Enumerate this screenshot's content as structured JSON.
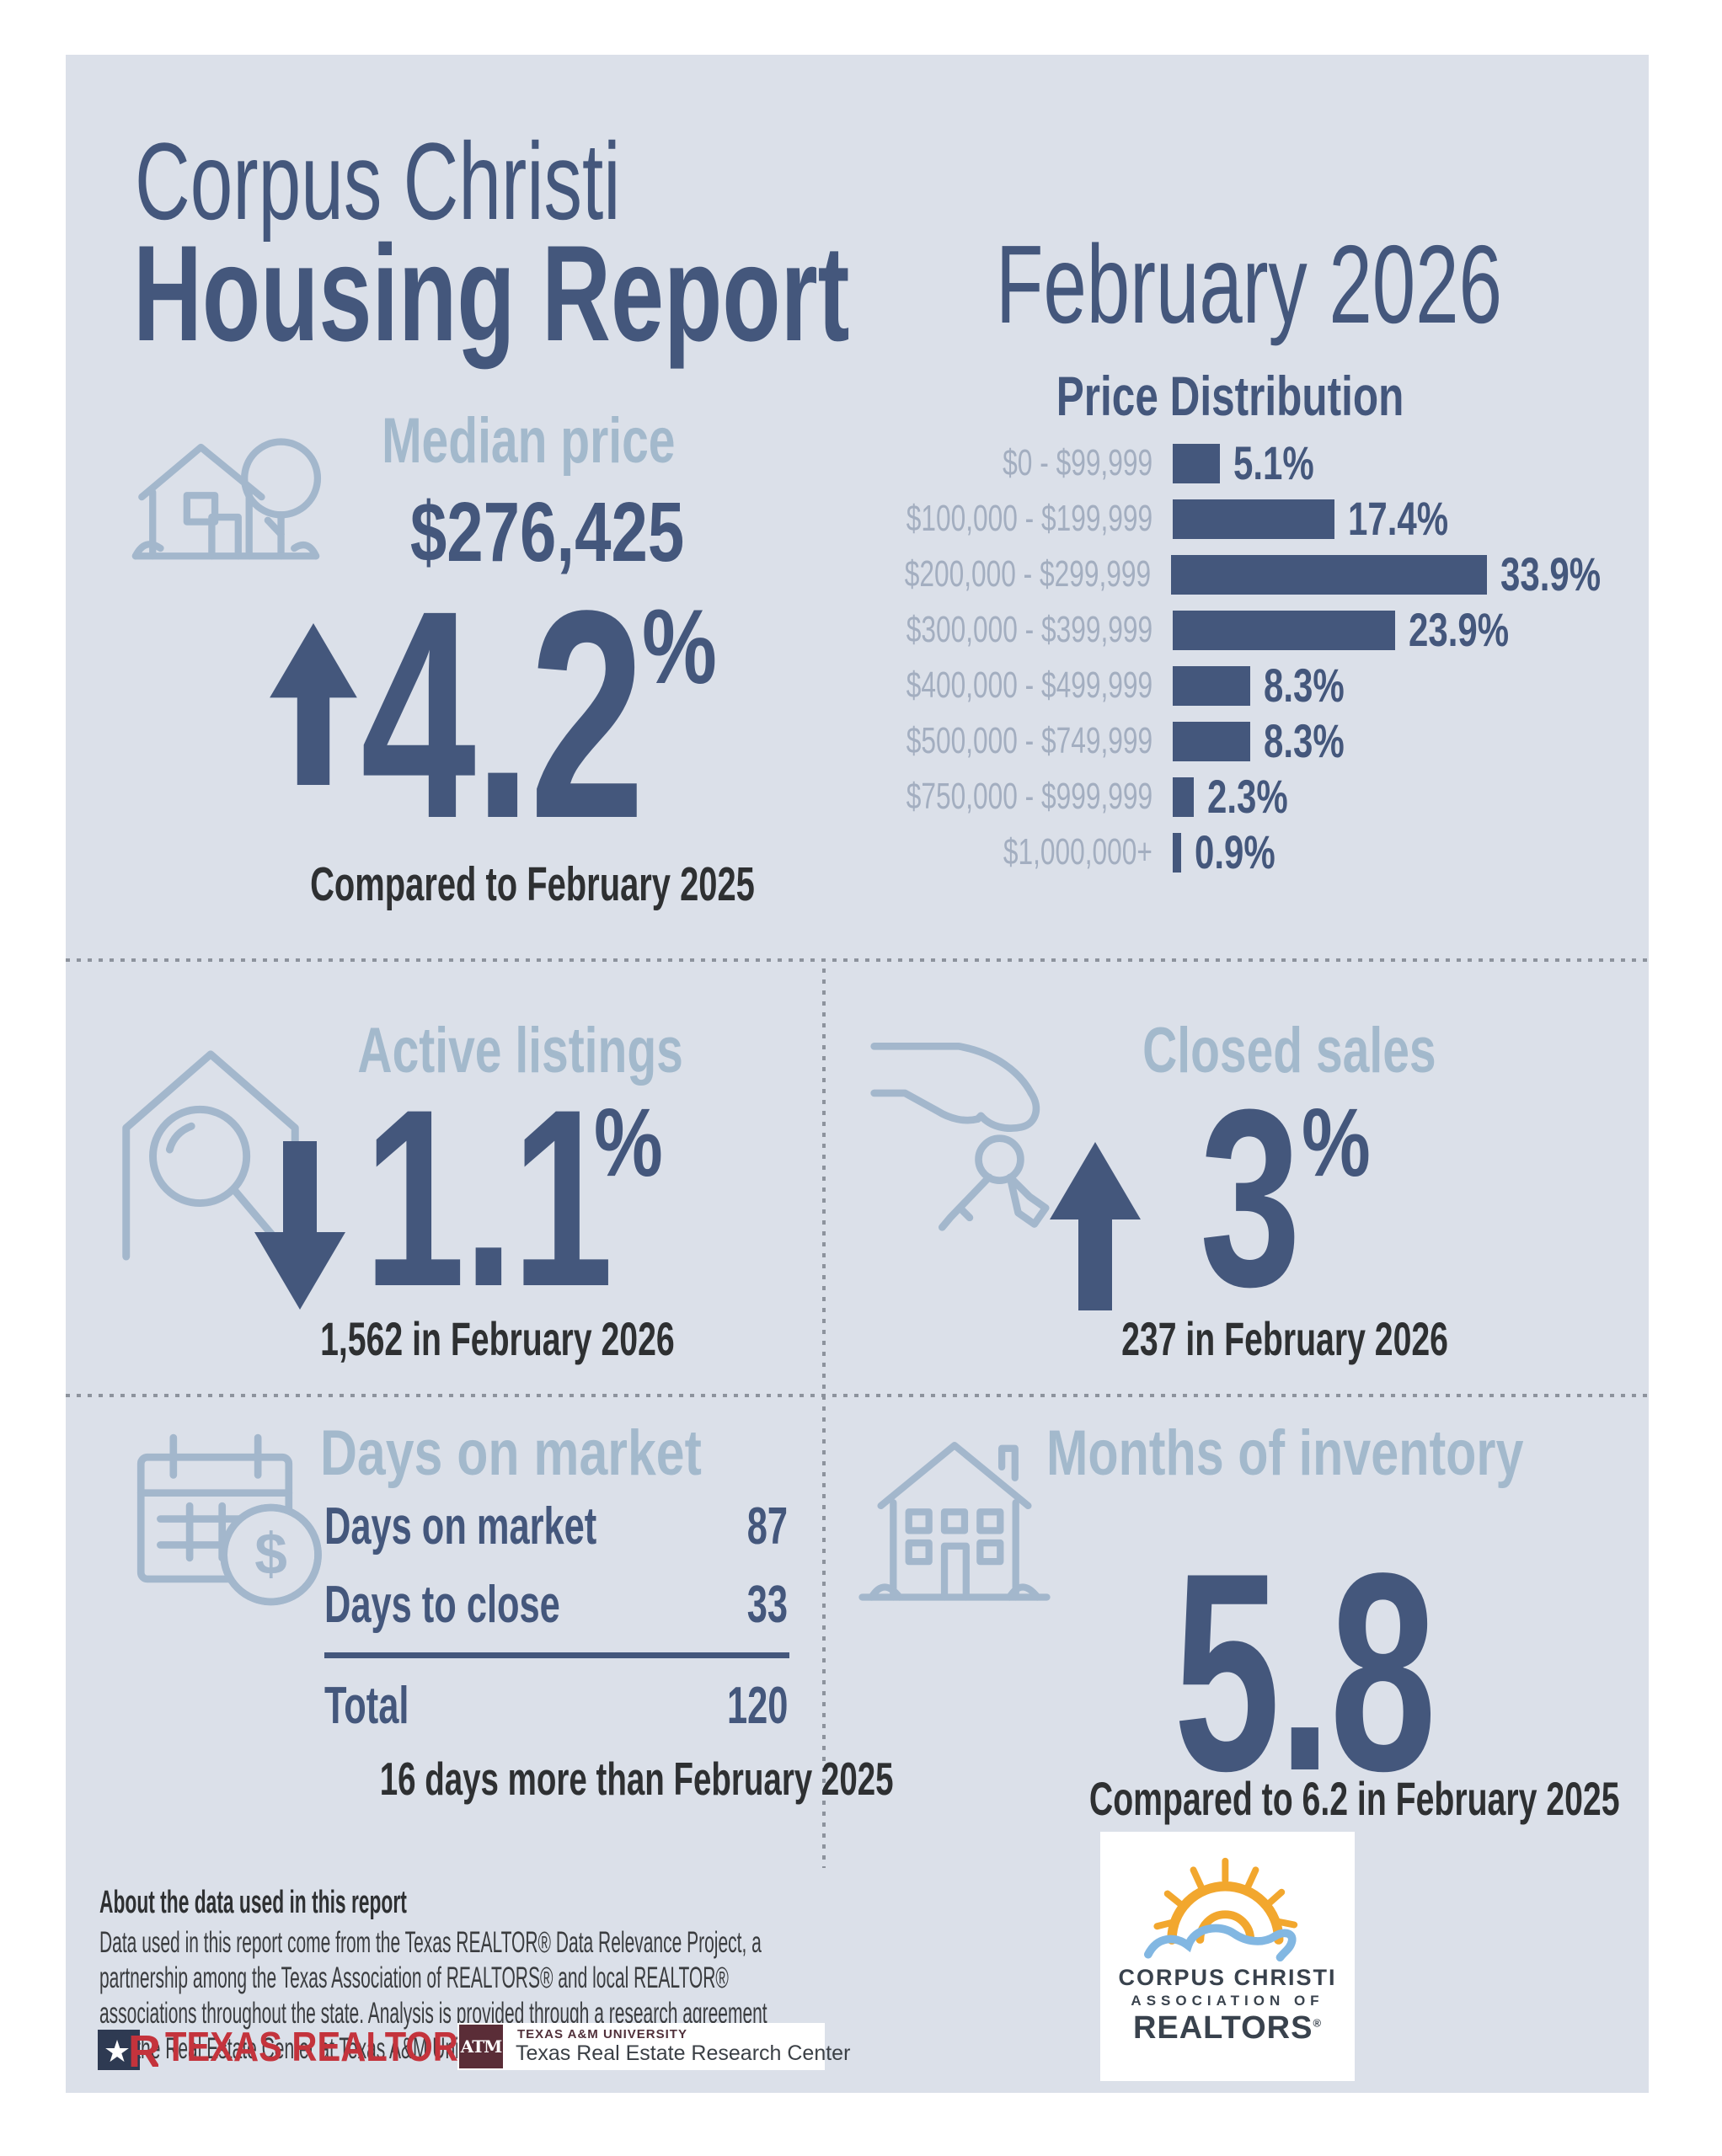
{
  "header": {
    "title_line1": "Corpus Christi",
    "title_line2": "Housing Report",
    "period": "February 2026"
  },
  "chart_data": {
    "type": "bar",
    "orientation": "horizontal",
    "title": "Price Distribution",
    "categories": [
      "$0 - $99,999",
      "$100,000 - $199,999",
      "$200,000 - $299,999",
      "$300,000 - $399,999",
      "$400,000 - $499,999",
      "$500,000 - $749,999",
      "$750,000 - $999,999",
      "$1,000,000+"
    ],
    "values": [
      5.1,
      17.4,
      33.9,
      23.9,
      8.3,
      8.3,
      2.3,
      0.9
    ],
    "value_labels": [
      "5.1%",
      "17.4%",
      "33.9%",
      "23.9%",
      "8.3%",
      "8.3%",
      "2.3%",
      "0.9%"
    ],
    "xlim": [
      0,
      35
    ],
    "grid": false,
    "legend": false,
    "bar_color": "#44577c"
  },
  "median_price": {
    "heading": "Median price",
    "value": "$276,425",
    "change": "4.2",
    "change_unit": "%",
    "direction": "up",
    "caption": "Compared to February 2025"
  },
  "active_listings": {
    "heading": "Active listings",
    "change": "1.1",
    "change_unit": "%",
    "direction": "down",
    "caption": "1,562 in February 2026"
  },
  "closed_sales": {
    "heading": "Closed sales",
    "change": "3",
    "change_unit": "%",
    "direction": "up",
    "caption": "237 in February 2026"
  },
  "days_on_market": {
    "heading": "Days on market",
    "rows": [
      {
        "label": "Days on market",
        "value": "87"
      },
      {
        "label": "Days to close",
        "value": "33"
      }
    ],
    "total": {
      "label": "Total",
      "value": "120"
    },
    "caption": "16 days more than February 2025"
  },
  "months_of_inventory": {
    "heading": "Months of inventory",
    "value": "5.8",
    "caption": "Compared to 6.2 in February 2025"
  },
  "about": {
    "heading": "About the data used in this report",
    "body": "Data used in this report come from the Texas REALTOR® Data Relevance Project, a\npartnership among the Texas Association of REALTORS® and local REALTOR®\nassociations throughout the state. Analysis is provided through a research agreement\nwith the Real Estate Center at Texas A&M University."
  },
  "logos": {
    "texas_realtors": {
      "name": "TEXAS REALTORS",
      "registered_mark": "®",
      "mark_star": "★",
      "mark_letter": "R"
    },
    "tamu": {
      "monogram": "ATM",
      "university": "TEXAS A&M UNIVERSITY",
      "center": "Texas Real Estate Research Center"
    },
    "ccar": {
      "line1": "CORPUS CHRISTI",
      "line2": "ASSOCIATION OF",
      "line3": "REALTORS",
      "registered_mark": "®"
    }
  },
  "colors": {
    "panel_background": "#dbe0e9",
    "accent_navy": "#44577c",
    "heading_light_blue": "#a3b9cc",
    "icon_line_blue": "#a3b7cc",
    "chart_label_gray": "#a3aec0",
    "body_dark": "#2e3032",
    "texas_realtors_red": "#c4333c",
    "tamu_maroon": "#5a2d37",
    "ccar_sun_orange": "#f2a72e",
    "ccar_wave_blue": "#82b7e2"
  }
}
